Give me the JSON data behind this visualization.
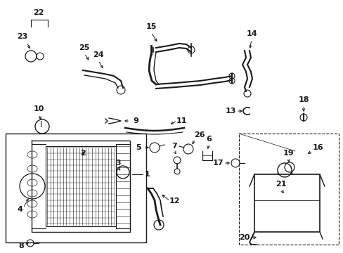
{
  "background_color": "#ffffff",
  "line_color": "#1a1a1a",
  "figsize": [
    4.89,
    3.6
  ],
  "dpi": 100,
  "border_color": "#cccccc"
}
